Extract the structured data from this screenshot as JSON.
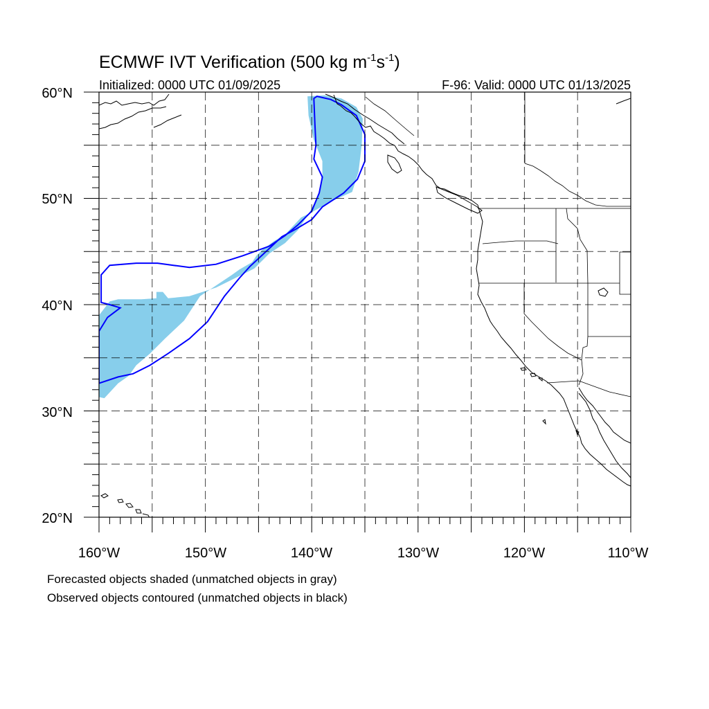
{
  "title": {
    "main": "ECMWF IVT Verification (500 kg m",
    "sup1": "-1",
    "mid": "s",
    "sup2": "-1",
    "end": ")"
  },
  "subtitle_left": "Initialized: 0000 UTC 01/09/2025",
  "subtitle_right": "F-96: Valid: 0000 UTC 01/13/2025",
  "lat_labels": [
    "60°N",
    "50°N",
    "40°N",
    "30°N",
    "20°N"
  ],
  "lon_labels": [
    "160°W",
    "150°W",
    "140°W",
    "130°W",
    "120°W",
    "110°W"
  ],
  "notes": [
    "Forecasted objects shaded (unmatched objects in gray)",
    "Observed objects contoured (unmatched objects in black)"
  ],
  "colors": {
    "forecast_fill": "#87ceeb",
    "observed_contour": "#0000ff",
    "coastline": "#000000"
  },
  "chart_data": {
    "type": "map",
    "projection": "cylindrical-equidistant",
    "lon_range": [
      -160,
      -110
    ],
    "lat_range": [
      20,
      60
    ],
    "grid_spacing_deg": 5,
    "forecast_object": [
      [
        -138.8,
        59.7
      ],
      [
        -137.2,
        59.4
      ],
      [
        -135.8,
        58.6
      ],
      [
        -135.2,
        57.5
      ],
      [
        -135.3,
        55.0
      ],
      [
        -135.6,
        52.5
      ],
      [
        -136.2,
        50.6
      ],
      [
        -138.0,
        49.8
      ],
      [
        -140.0,
        48.7
      ],
      [
        -141.0,
        48.2
      ],
      [
        -142.5,
        46.6
      ],
      [
        -143.5,
        46.0
      ],
      [
        -144.6,
        45.2
      ],
      [
        -145.2,
        44.6
      ],
      [
        -145.6,
        44.0
      ],
      [
        -146.8,
        43.3
      ],
      [
        -147.5,
        42.8
      ],
      [
        -149.0,
        41.8
      ],
      [
        -150.5,
        40.8
      ],
      [
        -152.0,
        38.5
      ],
      [
        -153.8,
        36.8
      ],
      [
        -155.2,
        35.4
      ],
      [
        -156.5,
        34.3
      ],
      [
        -157.2,
        33.3
      ],
      [
        -158.2,
        32.6
      ],
      [
        -159.5,
        31.2
      ],
      [
        -160.0,
        31.3
      ],
      [
        -160.0,
        39.0
      ],
      [
        -159.0,
        40.3
      ],
      [
        -158.2,
        40.5
      ],
      [
        -156.0,
        40.5
      ],
      [
        -154.6,
        40.6
      ],
      [
        -154.6,
        41.2
      ],
      [
        -154.0,
        41.2
      ],
      [
        -153.5,
        40.6
      ],
      [
        -151.5,
        40.8
      ],
      [
        -149.0,
        41.6
      ],
      [
        -147.0,
        42.6
      ],
      [
        -145.4,
        43.4
      ],
      [
        -144.0,
        44.8
      ],
      [
        -142.5,
        45.8
      ],
      [
        -141.3,
        47.0
      ],
      [
        -140.2,
        48.7
      ],
      [
        -139.5,
        50.0
      ],
      [
        -139.0,
        51.6
      ],
      [
        -139.0,
        53.5
      ],
      [
        -139.8,
        55.5
      ],
      [
        -140.3,
        57.8
      ],
      [
        -140.4,
        59.6
      ]
    ],
    "observed_object": [
      [
        -139.5,
        59.6
      ],
      [
        -138.2,
        59.3
      ],
      [
        -137.2,
        58.8
      ],
      [
        -135.8,
        57.8
      ],
      [
        -135.0,
        56.0
      ],
      [
        -135.0,
        53.5
      ],
      [
        -135.7,
        51.8
      ],
      [
        -137.0,
        50.5
      ],
      [
        -139.0,
        49.2
      ],
      [
        -140.0,
        48.0
      ],
      [
        -141.5,
        47.1
      ],
      [
        -142.8,
        46.4
      ],
      [
        -144.3,
        45.0
      ],
      [
        -145.8,
        43.6
      ],
      [
        -146.8,
        42.5
      ],
      [
        -148.2,
        40.8
      ],
      [
        -149.8,
        38.4
      ],
      [
        -151.5,
        36.8
      ],
      [
        -153.5,
        35.4
      ],
      [
        -155.2,
        34.3
      ],
      [
        -156.8,
        33.5
      ],
      [
        -158.2,
        33.2
      ],
      [
        -160.0,
        32.6
      ],
      [
        -160.0,
        37.5
      ],
      [
        -159.2,
        38.8
      ],
      [
        -158.0,
        39.7
      ],
      [
        -159.0,
        40.0
      ],
      [
        -159.8,
        40.2
      ],
      [
        -159.8,
        42.8
      ],
      [
        -159.0,
        43.7
      ],
      [
        -156.5,
        43.9
      ],
      [
        -154.5,
        43.9
      ],
      [
        -153.0,
        43.7
      ],
      [
        -151.5,
        43.5
      ],
      [
        -149.0,
        43.8
      ],
      [
        -146.5,
        44.6
      ],
      [
        -144.0,
        45.5
      ],
      [
        -142.5,
        46.5
      ],
      [
        -141.3,
        47.5
      ],
      [
        -140.0,
        48.8
      ],
      [
        -139.3,
        50.5
      ],
      [
        -139.0,
        52.0
      ],
      [
        -139.8,
        53.7
      ],
      [
        -139.6,
        55.0
      ],
      [
        -139.7,
        57.0
      ],
      [
        -139.8,
        59.4
      ]
    ]
  }
}
